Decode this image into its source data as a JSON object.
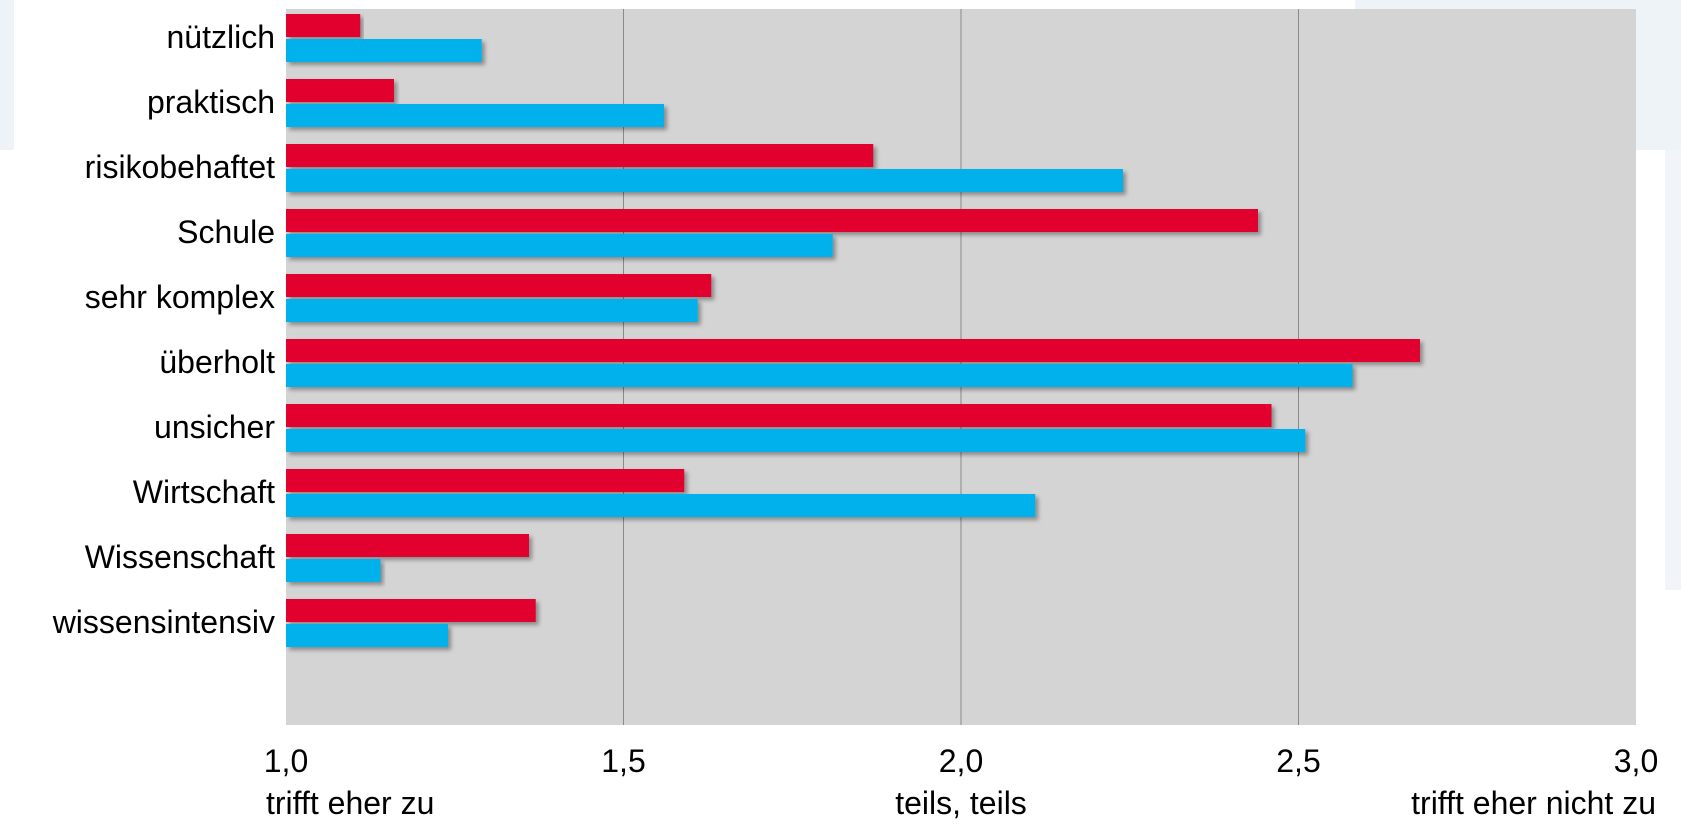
{
  "chart_data": {
    "type": "bar",
    "orientation": "horizontal",
    "categories": [
      "nützlich",
      "praktisch",
      "risikobehaftet",
      "Schule",
      "sehr komplex",
      "überholt",
      "unsicher",
      "Wirtschaft",
      "Wissenschaft",
      "wissensintensiv"
    ],
    "series": [
      {
        "color": "#e1002d",
        "values": [
          1.11,
          1.16,
          1.87,
          2.44,
          1.63,
          2.68,
          2.46,
          1.59,
          1.36,
          1.37
        ]
      },
      {
        "color": "#00b1eb",
        "values": [
          1.29,
          1.56,
          2.24,
          1.81,
          1.61,
          2.58,
          2.51,
          2.11,
          1.14,
          1.24
        ]
      }
    ],
    "xlim": [
      1.0,
      3.0
    ],
    "xticks": [
      1.0,
      1.5,
      2.0,
      2.5,
      3.0
    ],
    "xtick_labels": [
      "1,0",
      "1,5",
      "2,0",
      "2,5",
      "3,0"
    ],
    "scale_labels": [
      "trifft eher zu",
      "teils, teils",
      "trifft eher nicht zu"
    ],
    "grid": "vertical",
    "legend": "none",
    "title": "",
    "xlabel": "",
    "ylabel": ""
  },
  "colors": {
    "plot_background": "#d4d4d4",
    "gridline": "#8a8a8a",
    "text": "#000000"
  }
}
